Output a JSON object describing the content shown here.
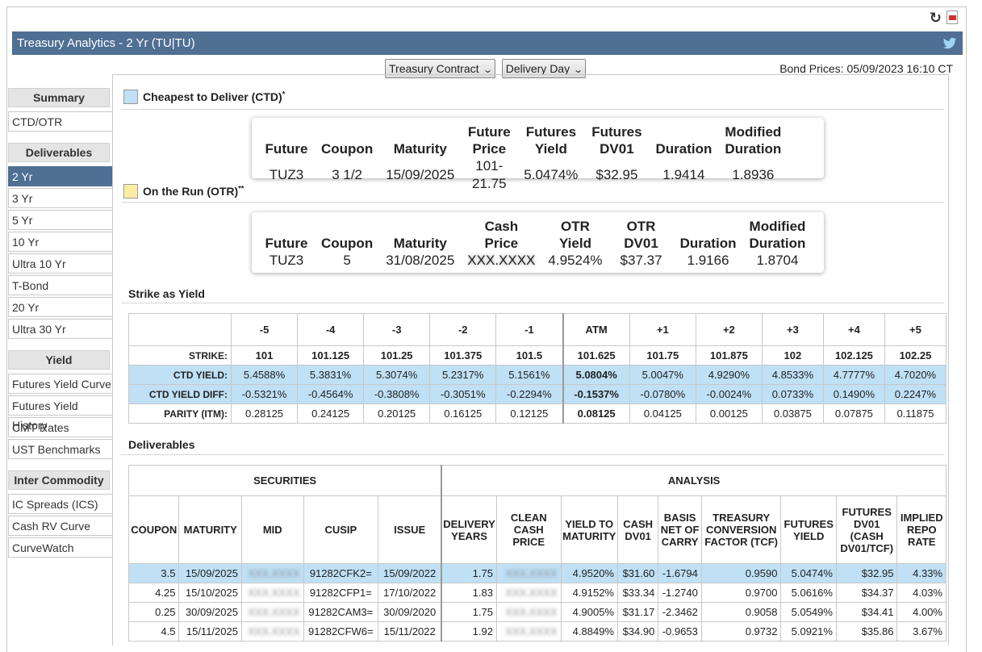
{
  "header": {
    "title": "Treasury Analytics - 2 Yr (TU|TU)",
    "bond_prices": "Bond Prices: 05/09/2023 16:10 CT"
  },
  "controls": {
    "contract": "Treasury Contract",
    "delivery": "Delivery Day"
  },
  "sidebar": {
    "groups": [
      {
        "head": "Summary",
        "items": [
          "CTD/OTR"
        ]
      },
      {
        "head": "Deliverables",
        "items": [
          "2 Yr",
          "3 Yr",
          "5 Yr",
          "10 Yr",
          "Ultra 10 Yr",
          "T-Bond",
          "20 Yr",
          "Ultra 30 Yr"
        ]
      },
      {
        "head": "Yield",
        "items": [
          "Futures Yield Curve",
          "Futures Yield History",
          "CMT Rates",
          "UST Benchmarks"
        ]
      },
      {
        "head": "Inter Commodity",
        "items": [
          "IC Spreads (ICS)",
          "Cash RV Curve",
          "CurveWatch"
        ]
      }
    ],
    "active": "2 Yr"
  },
  "ctd": {
    "title": "Cheapest to Deliver (CTD)",
    "sup": "*",
    "headers": [
      "Future",
      "Coupon",
      "Maturity",
      "Future Price",
      "Futures Yield",
      "Futures DV01",
      "Duration",
      "Modified Duration"
    ],
    "values": [
      "TUZ3",
      "3 1/2",
      "15/09/2025",
      "101-21.75",
      "5.0474%",
      "$32.95",
      "1.9414",
      "1.8936"
    ]
  },
  "otr": {
    "title": "On the Run (OTR)",
    "sup": "**",
    "headers": [
      "Future",
      "Coupon",
      "Maturity",
      "Cash Price",
      "OTR Yield",
      "OTR DV01",
      "Duration",
      "Modified Duration"
    ],
    "values": [
      "TUZ3",
      "5",
      "31/08/2025",
      "XXX.XXXX",
      "4.9524%",
      "$37.37",
      "1.9166",
      "1.8704"
    ]
  },
  "strike": {
    "title": "Strike as Yield",
    "cols": [
      "-5",
      "-4",
      "-3",
      "-2",
      "-1",
      "ATM",
      "+1",
      "+2",
      "+3",
      "+4",
      "+5"
    ],
    "rows": [
      {
        "label": "STRIKE:",
        "values": [
          "101",
          "101.125",
          "101.25",
          "101.375",
          "101.5",
          "101.625",
          "101.75",
          "101.875",
          "102",
          "102.125",
          "102.25"
        ]
      },
      {
        "label": "CTD YIELD:",
        "values": [
          "5.4588%",
          "5.3831%",
          "5.3074%",
          "5.2317%",
          "5.1561%",
          "5.0804%",
          "5.0047%",
          "4.9290%",
          "4.8533%",
          "4.7777%",
          "4.7020%"
        ]
      },
      {
        "label": "CTD YIELD DIFF:",
        "values": [
          "-0.5321%",
          "-0.4564%",
          "-0.3808%",
          "-0.3051%",
          "-0.2294%",
          "-0.1537%",
          "-0.0780%",
          "-0.0024%",
          "0.0733%",
          "0.1490%",
          "0.2247%"
        ]
      },
      {
        "label": "PARITY (ITM):",
        "values": [
          "0.28125",
          "0.24125",
          "0.20125",
          "0.16125",
          "0.12125",
          "0.08125",
          "0.04125",
          "0.00125",
          "0.03875",
          "0.07875",
          "0.11875"
        ]
      }
    ]
  },
  "deliverables": {
    "title": "Deliverables",
    "group_securities": "SECURITIES",
    "group_analysis": "ANALYSIS",
    "headers": [
      "COUPON",
      "MATURITY",
      "MID",
      "CUSIP",
      "ISSUE",
      "DELIVERY YEARS",
      "CLEAN CASH PRICE",
      "YIELD TO MATURITY",
      "CASH DV01",
      "BASIS NET OF CARRY",
      "TREASURY CONVERSION FACTOR (TCF)",
      "FUTURES YIELD",
      "FUTURES DV01 (CASH DV01/TCF)",
      "IMPLIED REPO RATE"
    ],
    "rows": [
      [
        "3.5",
        "15/09/2025",
        "XXX.XXXX",
        "91282CFK2=",
        "15/09/2022",
        "1.75",
        "XXX.XXXX",
        "4.9520%",
        "$31.60",
        "-1.6794",
        "0.9590",
        "5.0474%",
        "$32.95",
        "4.33%"
      ],
      [
        "4.25",
        "15/10/2025",
        "XXX.XXXX",
        "91282CFP1=",
        "17/10/2022",
        "1.83",
        "XXX.XXXX",
        "4.9152%",
        "$33.34",
        "-1.2740",
        "0.9700",
        "5.0616%",
        "$34.37",
        "4.03%"
      ],
      [
        "0.25",
        "30/09/2025",
        "XXX.XXXX",
        "91282CAM3=",
        "30/09/2020",
        "1.75",
        "XXX.XXXX",
        "4.9005%",
        "$31.17",
        "-2.3462",
        "0.9058",
        "5.0549%",
        "$34.41",
        "4.00%"
      ],
      [
        "4.5",
        "15/11/2025",
        "XXX.XXXX",
        "91282CFW6=",
        "15/11/2022",
        "1.92",
        "XXX.XXXX",
        "4.8849%",
        "$34.90",
        "-0.9653",
        "0.9732",
        "5.0921%",
        "$35.86",
        "3.67%"
      ]
    ]
  },
  "colors": {
    "titlebar": "#4f6f93",
    "ctd_swatch": "#bfe0f5",
    "otr_swatch": "#fbeea4",
    "highlight": "#bfe0f5"
  }
}
